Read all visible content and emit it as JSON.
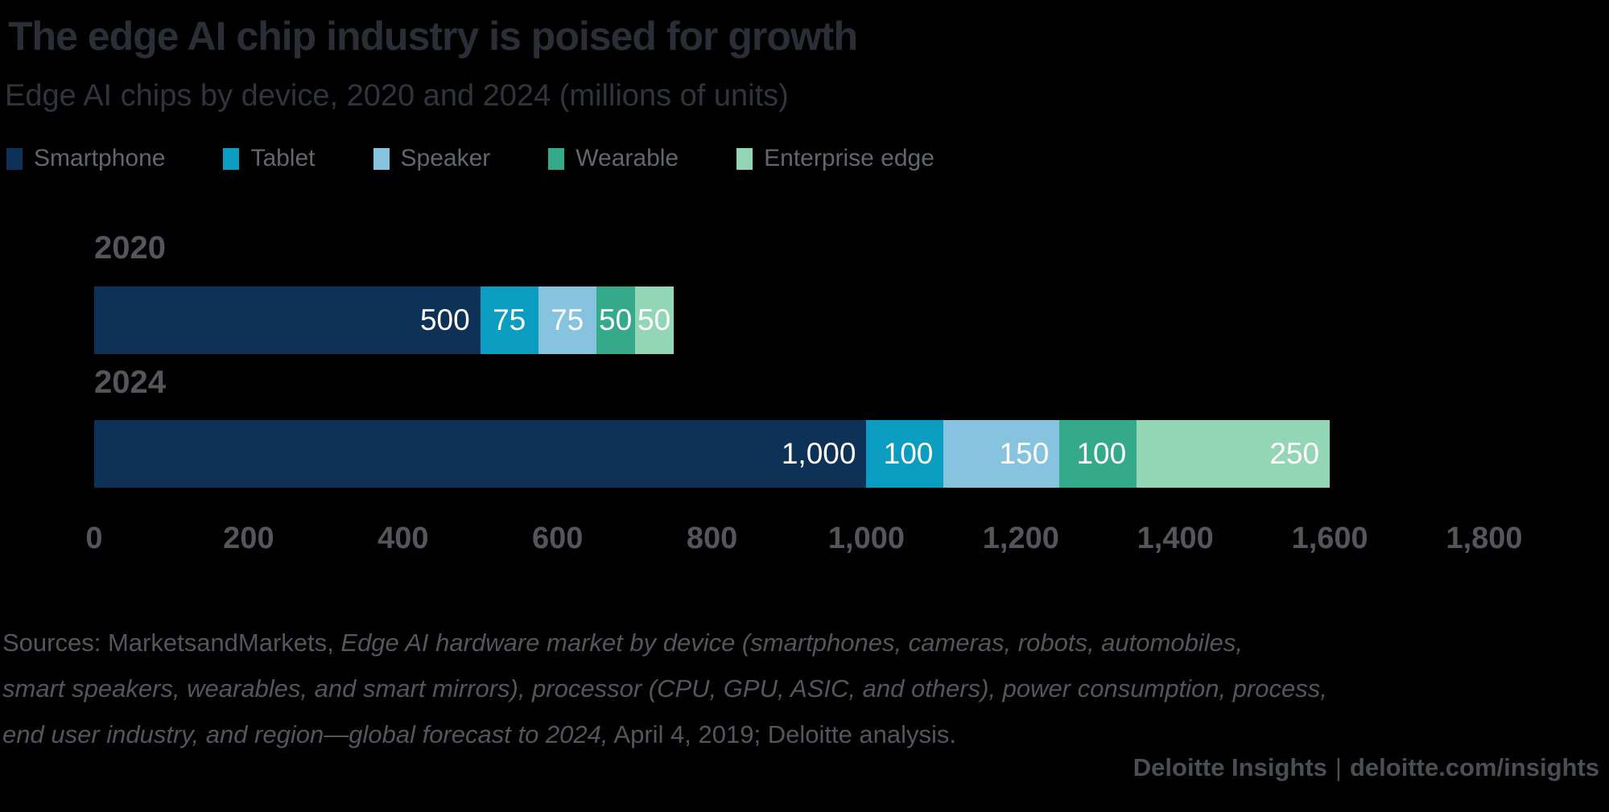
{
  "header": {
    "title": "The edge AI chip industry is poised for growth",
    "subtitle": "Edge AI chips by device, 2020 and 2024 (millions of units)"
  },
  "colors": {
    "background": "#000000",
    "smartphone": "#0e3157",
    "tablet": "#0a9cc1",
    "speaker": "#86c3de",
    "wearable": "#35aa8b",
    "enterprise_edge": "#93d6b5",
    "bar_value_text": "#ffffff"
  },
  "chart_data": {
    "type": "bar",
    "orientation": "horizontal",
    "stacked": true,
    "title": "The edge AI chip industry is poised for growth",
    "subtitle": "Edge AI chips by device, 2020 and 2024 (millions of units)",
    "categories": [
      "2020",
      "2024"
    ],
    "series": [
      {
        "name": "Smartphone",
        "color": "#0e3157",
        "values": [
          500,
          1000
        ]
      },
      {
        "name": "Tablet",
        "color": "#0a9cc1",
        "values": [
          75,
          100
        ]
      },
      {
        "name": "Speaker",
        "color": "#86c3de",
        "values": [
          75,
          150
        ]
      },
      {
        "name": "Wearable",
        "color": "#35aa8b",
        "values": [
          50,
          100
        ]
      },
      {
        "name": "Enterprise edge",
        "color": "#93d6b5",
        "values": [
          50,
          250
        ]
      }
    ],
    "category_totals": [
      750,
      1600
    ],
    "xlabel": "",
    "ylabel": "",
    "xlim": [
      0,
      1800
    ],
    "x_ticks": [
      {
        "value": 0,
        "label": "0"
      },
      {
        "value": 200,
        "label": "200"
      },
      {
        "value": 400,
        "label": "400"
      },
      {
        "value": 600,
        "label": "600"
      },
      {
        "value": 800,
        "label": "800"
      },
      {
        "value": 1000,
        "label": "1,000"
      },
      {
        "value": 1200,
        "label": "1,200"
      },
      {
        "value": 1400,
        "label": "1,400"
      },
      {
        "value": 1600,
        "label": "1,600"
      },
      {
        "value": 1800,
        "label": "1,800"
      }
    ],
    "grid": false,
    "legend_position": "top-left",
    "value_labels": "inside-right, white"
  },
  "sources": {
    "lines": [
      [
        {
          "t": "Sources: MarketsandMarkets, ",
          "i": false
        },
        {
          "t": "Edge AI hardware market by device (smartphones, cameras, robots, automobiles,",
          "i": true
        }
      ],
      [
        {
          "t": "smart speakers, wearables, and smart mirrors), processor (CPU, GPU, ASIC, and others), power consumption, process,",
          "i": true
        }
      ],
      [
        {
          "t": "end user industry, and region—global forecast to 2024,",
          "i": true
        },
        {
          "t": " April 4, 2019; Deloitte analysis.",
          "i": false
        }
      ]
    ]
  },
  "footer": {
    "brand": "Deloitte Insights",
    "separator": "|",
    "url": "deloitte.com/insights"
  }
}
